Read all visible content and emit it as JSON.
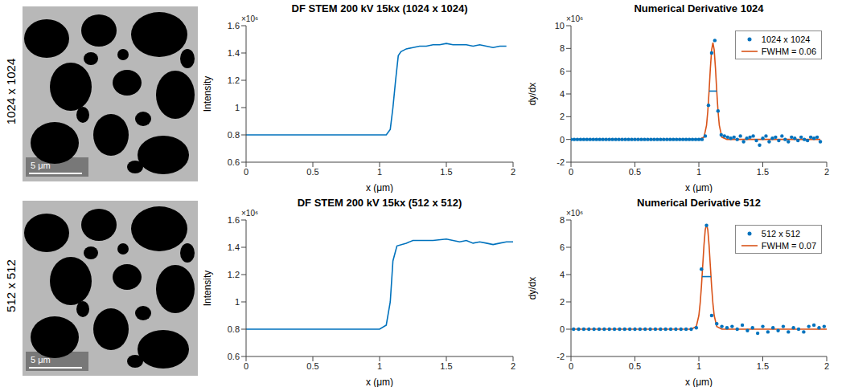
{
  "rows": [
    {
      "label": "1024 x 1024",
      "image": {
        "scale_bar": "5 μm"
      }
    },
    {
      "label": "512 x 512",
      "image": {
        "scale_bar": "5 μm"
      }
    }
  ],
  "chart_data": [
    {
      "type": "line",
      "title": "DF STEM 200 kV 15kx (1024 x 1024)",
      "xlabel": "x (μm)",
      "ylabel": "Intensity",
      "y_multiplier": "×10⁶",
      "xlim": [
        0,
        2
      ],
      "xticks": [
        0,
        0.5,
        1,
        1.5,
        2
      ],
      "ylim": [
        0.6,
        1.6
      ],
      "yticks": [
        0.6,
        0.8,
        1,
        1.2,
        1.4,
        1.6
      ],
      "series": [
        {
          "type": "line",
          "color": "#0072bd",
          "line_style": "solid",
          "x": [
            0,
            0.1,
            0.2,
            0.3,
            0.4,
            0.5,
            0.6,
            0.7,
            0.8,
            0.9,
            1,
            1.05,
            1.08,
            1.1,
            1.12,
            1.14,
            1.16,
            1.2,
            1.25,
            1.3,
            1.35,
            1.4,
            1.45,
            1.5,
            1.55,
            1.6,
            1.65,
            1.7,
            1.75,
            1.8,
            1.85,
            1.9,
            1.95
          ],
          "values": [
            0.8,
            0.8,
            0.8,
            0.8,
            0.8,
            0.8,
            0.8,
            0.8,
            0.8,
            0.8,
            0.8,
            0.8,
            0.84,
            1.0,
            1.2,
            1.38,
            1.41,
            1.43,
            1.44,
            1.45,
            1.45,
            1.46,
            1.46,
            1.47,
            1.46,
            1.46,
            1.46,
            1.45,
            1.46,
            1.45,
            1.44,
            1.45,
            1.45
          ]
        }
      ]
    },
    {
      "type": "scatter",
      "title": "Numerical Derivative 1024",
      "xlabel": "x (μm)",
      "ylabel": "dy/dx",
      "y_multiplier": "×10⁶",
      "xlim": [
        0,
        2
      ],
      "xticks": [
        0,
        0.5,
        1,
        1.5,
        2
      ],
      "ylim": [
        -2,
        10
      ],
      "yticks": [
        -2,
        0,
        2,
        4,
        6,
        8,
        10
      ],
      "legend": "upper right",
      "series": [
        {
          "name": "1024 x 1024",
          "type": "scatter",
          "marker": "o",
          "color": "#0072bd",
          "x": [
            0,
            0.025,
            0.05,
            0.075,
            0.1,
            0.125,
            0.15,
            0.175,
            0.2,
            0.225,
            0.25,
            0.275,
            0.3,
            0.325,
            0.35,
            0.375,
            0.4,
            0.425,
            0.45,
            0.475,
            0.5,
            0.525,
            0.55,
            0.575,
            0.6,
            0.625,
            0.65,
            0.675,
            0.7,
            0.725,
            0.75,
            0.775,
            0.8,
            0.825,
            0.85,
            0.875,
            0.9,
            0.925,
            0.95,
            0.975,
            1,
            1.025,
            1.05,
            1.075,
            1.1,
            1.125,
            1.15,
            1.175,
            1.2,
            1.225,
            1.25,
            1.275,
            1.3,
            1.325,
            1.35,
            1.375,
            1.4,
            1.425,
            1.45,
            1.475,
            1.5,
            1.525,
            1.55,
            1.575,
            1.6,
            1.625,
            1.65,
            1.675,
            1.7,
            1.725,
            1.75,
            1.775,
            1.8,
            1.825,
            1.85,
            1.875,
            1.9,
            1.925,
            1.95
          ],
          "values": [
            0,
            0,
            0,
            0,
            0,
            0,
            0,
            0,
            0,
            0,
            0,
            0,
            0,
            0,
            0,
            0,
            0,
            0,
            0,
            0,
            0,
            0,
            0,
            0,
            0,
            0,
            0,
            0,
            0,
            0,
            0,
            0,
            0,
            0,
            0,
            0,
            0,
            0,
            0,
            0,
            0,
            0,
            0.3,
            3.0,
            7.6,
            8.7,
            2.5,
            0.4,
            0.3,
            0.2,
            0.1,
            0.2,
            0.0,
            0.3,
            -0.2,
            0.1,
            0.2,
            0.3,
            -0.1,
            -0.5,
            0.1,
            0.3,
            -0.2,
            0.1,
            0.2,
            -0.1,
            0.3,
            0.0,
            -0.2,
            0.2,
            0.1,
            -0.1,
            0.2,
            0.0,
            -0.1,
            0.2,
            0.1,
            0.2,
            -0.2
          ]
        },
        {
          "name": "FWHM = 0.06",
          "type": "line",
          "line_style": "solid",
          "color": "#d95319",
          "x": [
            0,
            1.0,
            1.04,
            1.06,
            1.07,
            1.08,
            1.09,
            1.1,
            1.11,
            1.12,
            1.13,
            1.14,
            1.15,
            1.16,
            1.18,
            1.22,
            1.95
          ],
          "values": [
            0,
            0,
            0.2,
            1.24,
            2.48,
            4.25,
            6.25,
            7.87,
            8.5,
            7.87,
            6.25,
            4.25,
            2.48,
            1.24,
            0.2,
            0,
            0
          ]
        }
      ],
      "half_max_line": {
        "x": [
          1.08,
          1.14
        ],
        "y": 4.25,
        "color": "#0072bd"
      }
    },
    {
      "type": "line",
      "title": "DF STEM 200 kV 15kx (512 x 512)",
      "xlabel": "x (μm)",
      "ylabel": "Intensity",
      "y_multiplier": "×10⁶",
      "xlim": [
        0,
        2
      ],
      "xticks": [
        0,
        0.5,
        1,
        1.5,
        2
      ],
      "ylim": [
        0.6,
        1.6
      ],
      "yticks": [
        0.6,
        0.8,
        1,
        1.2,
        1.4,
        1.6
      ],
      "series": [
        {
          "type": "line",
          "color": "#0072bd",
          "line_style": "solid",
          "x": [
            0,
            0.1,
            0.2,
            0.3,
            0.4,
            0.5,
            0.6,
            0.7,
            0.8,
            0.9,
            1,
            1.05,
            1.08,
            1.1,
            1.13,
            1.2,
            1.25,
            1.3,
            1.4,
            1.5,
            1.55,
            1.6,
            1.65,
            1.7,
            1.75,
            1.8,
            1.85,
            1.9,
            1.95,
            2.0
          ],
          "values": [
            0.8,
            0.8,
            0.8,
            0.8,
            0.8,
            0.8,
            0.8,
            0.8,
            0.8,
            0.8,
            0.8,
            0.83,
            1.0,
            1.3,
            1.41,
            1.43,
            1.45,
            1.45,
            1.45,
            1.46,
            1.45,
            1.44,
            1.45,
            1.43,
            1.44,
            1.43,
            1.42,
            1.43,
            1.44,
            1.44
          ]
        }
      ]
    },
    {
      "type": "scatter",
      "title": "Numerical Derivative 512",
      "xlabel": "x (μm)",
      "ylabel": "dy/dx",
      "y_multiplier": "×10⁶",
      "xlim": [
        0,
        2
      ],
      "xticks": [
        0,
        0.5,
        1,
        1.5,
        2
      ],
      "ylim": [
        -2,
        8
      ],
      "yticks": [
        -2,
        0,
        2,
        4,
        6,
        8
      ],
      "legend": "upper right",
      "series": [
        {
          "name": "512 x 512",
          "type": "scatter",
          "marker": "o",
          "color": "#0072bd",
          "x": [
            0.02,
            0.06,
            0.1,
            0.14,
            0.18,
            0.22,
            0.26,
            0.3,
            0.34,
            0.38,
            0.42,
            0.46,
            0.5,
            0.54,
            0.58,
            0.62,
            0.66,
            0.7,
            0.74,
            0.78,
            0.82,
            0.86,
            0.9,
            0.94,
            0.98,
            1.02,
            1.06,
            1.1,
            1.14,
            1.18,
            1.22,
            1.26,
            1.3,
            1.34,
            1.38,
            1.42,
            1.46,
            1.5,
            1.54,
            1.58,
            1.62,
            1.66,
            1.7,
            1.74,
            1.78,
            1.82,
            1.86,
            1.9,
            1.94,
            1.98
          ],
          "values": [
            0,
            0,
            0,
            0,
            0,
            0,
            0,
            0,
            0,
            0,
            0,
            0,
            0,
            0,
            0,
            0,
            0,
            0,
            0,
            0,
            0,
            0,
            0,
            0,
            0.1,
            4.4,
            7.6,
            1.0,
            0.4,
            0.2,
            0.1,
            0.2,
            0.0,
            0.3,
            -0.1,
            0.1,
            -0.3,
            0.2,
            -0.2,
            0.1,
            -0.1,
            0.2,
            -0.2,
            0.1,
            0.0,
            -0.2,
            0.2,
            0.3,
            0.1,
            0.2
          ]
        },
        {
          "name": "FWHM = 0.07",
          "type": "line",
          "line_style": "solid",
          "color": "#d95319",
          "x": [
            0,
            0.94,
            0.98,
            1.0,
            1.01,
            1.02,
            1.03,
            1.04,
            1.05,
            1.06,
            1.07,
            1.08,
            1.09,
            1.1,
            1.11,
            1.12,
            1.14,
            1.18,
            2.0
          ],
          "values": [
            0,
            0,
            0.2,
            1.0,
            1.87,
            3.11,
            4.62,
            6.14,
            7.28,
            7.7,
            7.28,
            6.14,
            4.62,
            3.11,
            1.87,
            1.0,
            0.2,
            0,
            0
          ]
        }
      ],
      "half_max_line": {
        "x": [
          1.025,
          1.095
        ],
        "y": 3.85,
        "color": "#0072bd"
      }
    }
  ]
}
